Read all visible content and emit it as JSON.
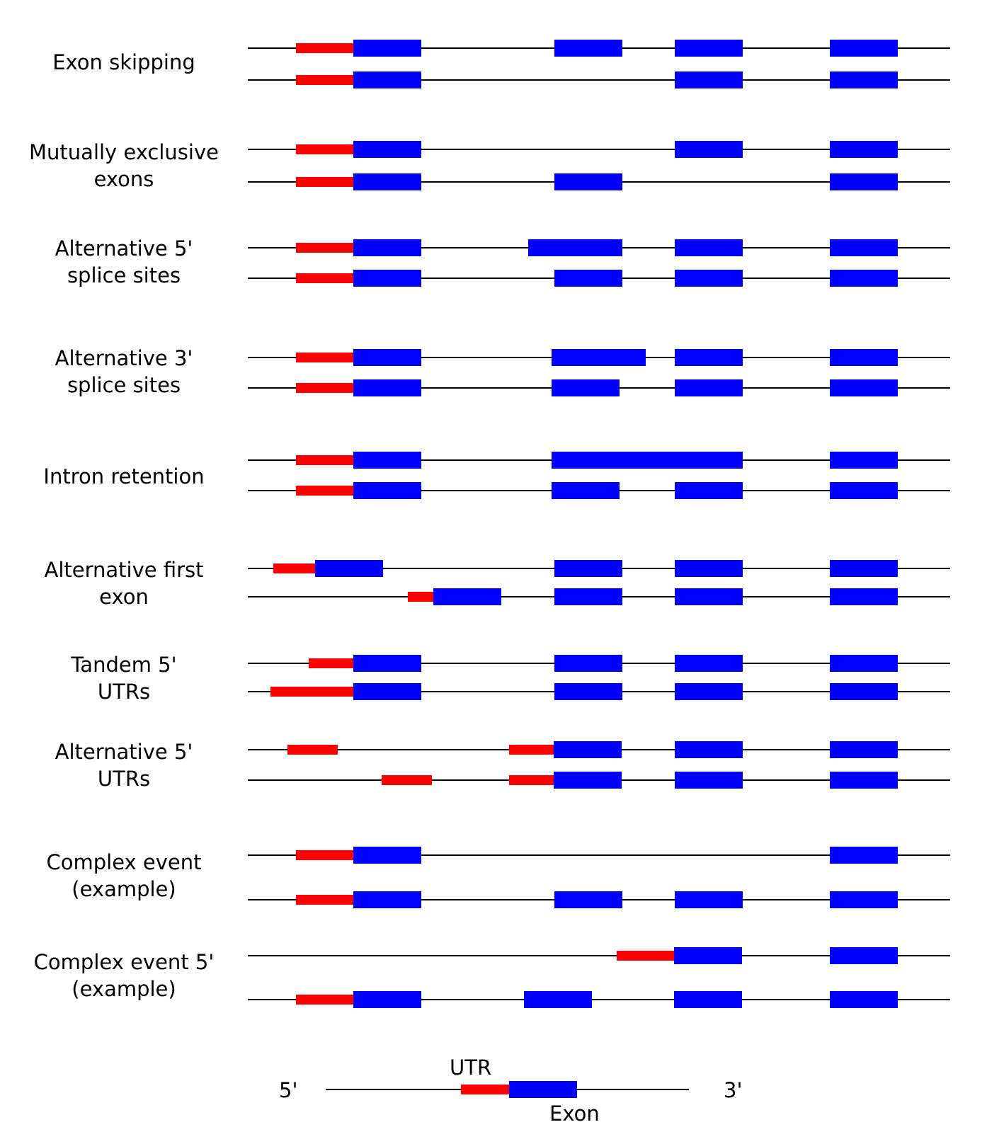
{
  "colors": {
    "utr": "#ff0000",
    "exon": "#0000ff",
    "intron": "#000000",
    "background": "#ffffff"
  },
  "events": [
    {
      "label": [
        "Exon skipping"
      ]
    },
    {
      "label": [
        "Mutually exclusive",
        "exons"
      ]
    },
    {
      "label": [
        "Alternative 5'",
        "splice sites"
      ]
    },
    {
      "label": [
        "Alternative 3'",
        "splice sites"
      ]
    },
    {
      "label": [
        "Intron retention"
      ]
    },
    {
      "label": [
        "Alternative first",
        "exon"
      ]
    },
    {
      "label": [
        "Tandem 5'",
        "UTRs"
      ]
    },
    {
      "label": [
        "Alternative 5'",
        "UTRs"
      ]
    },
    {
      "label": [
        "Complex event",
        "(example)"
      ]
    },
    {
      "label": [
        "Complex event 5'",
        "(example)"
      ]
    }
  ],
  "legend": {
    "five_prime": "5'",
    "three_prime": "3'",
    "utr_label": "UTR",
    "exon_label": "Exon"
  }
}
